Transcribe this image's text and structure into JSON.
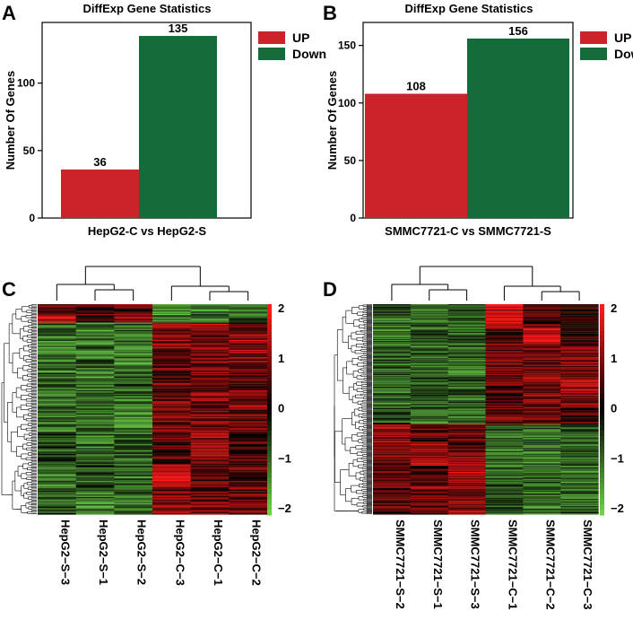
{
  "colors": {
    "up": "#cc2229",
    "down": "#166b3a",
    "heat_low": "#6cd04a",
    "heat_mid": "#000000",
    "heat_high": "#ff1a1a"
  },
  "chart_data": [
    {
      "panel": "A",
      "type": "bar",
      "title": "DiffExp Gene Statistics",
      "xlabel": "HepG2-C vs HepG2-S",
      "ylabel": "Number Of Genes",
      "ylim": [
        0,
        145
      ],
      "yticks": [
        0,
        50,
        100
      ],
      "legend": [
        "UP",
        "Down"
      ],
      "legend_position": "right",
      "series": [
        {
          "name": "UP",
          "value": 36
        },
        {
          "name": "Down",
          "value": 135
        }
      ]
    },
    {
      "panel": "B",
      "type": "bar",
      "title": "DiffExp Gene Statistics",
      "xlabel": "SMMC7721-C vs SMMC7721-S",
      "ylabel": "Number Of Genes",
      "ylim": [
        0,
        170
      ],
      "yticks": [
        0,
        50,
        100,
        150
      ],
      "legend": [
        "UP",
        "Down"
      ],
      "legend_position": "right",
      "series": [
        {
          "name": "UP",
          "value": 108
        },
        {
          "name": "Down",
          "value": 156
        }
      ]
    },
    {
      "panel": "C",
      "type": "heatmap",
      "columns": [
        "HepG2−S−3",
        "HepG2−S−1",
        "HepG2−S−2",
        "HepG2−C−3",
        "HepG2−C−1",
        "HepG2−C−2"
      ],
      "color_scale": [
        2,
        1,
        0,
        -1,
        -2
      ],
      "value_range": [
        -2,
        2
      ],
      "row_count": 171,
      "blocks": [
        {
          "rows": 9,
          "values": [
            0.9,
            0.5,
            0.6,
            -1.2,
            -1.0,
            -1.1
          ]
        },
        {
          "rows": 6,
          "values": [
            1.6,
            0.3,
            0.9,
            -0.9,
            -1.2,
            -0.8
          ]
        },
        {
          "rows": 10,
          "values": [
            -0.9,
            -1.2,
            -1.0,
            0.9,
            1.2,
            0.8
          ]
        },
        {
          "rows": 30,
          "values": [
            -1.1,
            -1.0,
            -1.2,
            1.0,
            0.9,
            1.0
          ]
        },
        {
          "rows": 20,
          "values": [
            -0.8,
            -1.1,
            -0.9,
            0.7,
            1.0,
            0.8
          ]
        },
        {
          "rows": 30,
          "values": [
            -1.0,
            -0.9,
            -1.1,
            0.8,
            0.9,
            0.9
          ]
        },
        {
          "rows": 25,
          "values": [
            -0.7,
            -1.0,
            -0.8,
            0.6,
            1.1,
            0.5
          ]
        },
        {
          "rows": 20,
          "values": [
            -1.2,
            -0.8,
            -0.9,
            1.3,
            0.7,
            0.6
          ]
        },
        {
          "rows": 21,
          "values": [
            -0.8,
            -1.1,
            -1.0,
            1.0,
            0.9,
            0.7
          ]
        }
      ]
    },
    {
      "panel": "D",
      "type": "heatmap",
      "columns": [
        "SMMC7721−S−2",
        "SMMC7721−S−1",
        "SMMC7721−S−3",
        "SMMC7721−C−1",
        "SMMC7721−C−2",
        "SMMC7721−C−3"
      ],
      "color_scale": [
        2,
        1,
        0,
        -1,
        -2
      ],
      "value_range": [
        -2,
        2
      ],
      "row_count": 264,
      "blocks": [
        {
          "rows": 30,
          "values": [
            -0.9,
            -1.0,
            -0.8,
            1.6,
            0.6,
            0.3
          ]
        },
        {
          "rows": 22,
          "values": [
            -1.0,
            -0.8,
            -0.9,
            0.7,
            1.6,
            0.4
          ]
        },
        {
          "rows": 40,
          "values": [
            -0.9,
            -1.1,
            -1.0,
            0.9,
            0.8,
            0.8
          ]
        },
        {
          "rows": 35,
          "values": [
            -1.0,
            -0.9,
            -0.9,
            0.6,
            1.0,
            1.1
          ]
        },
        {
          "rows": 24,
          "values": [
            -0.8,
            -1.0,
            -1.0,
            0.9,
            0.7,
            0.5
          ]
        },
        {
          "rows": 22,
          "values": [
            1.2,
            0.7,
            0.9,
            -1.0,
            -0.9,
            -0.8
          ]
        },
        {
          "rows": 30,
          "values": [
            0.9,
            1.4,
            0.8,
            -0.9,
            -1.0,
            -1.0
          ]
        },
        {
          "rows": 25,
          "values": [
            0.8,
            0.6,
            1.3,
            -1.0,
            -0.9,
            -1.1
          ]
        },
        {
          "rows": 36,
          "values": [
            0.7,
            0.9,
            1.0,
            -0.8,
            -1.1,
            -0.9
          ]
        }
      ]
    }
  ]
}
